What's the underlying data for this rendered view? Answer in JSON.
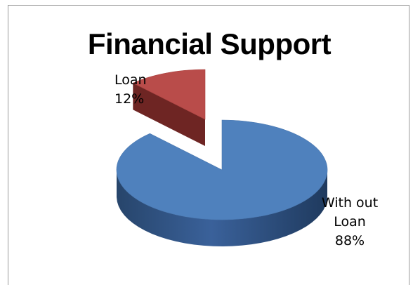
{
  "chart_data": {
    "type": "pie",
    "style": "3d-exploded",
    "title": "Financial Support",
    "slices": [
      {
        "label_line1": "Loan",
        "label_line2": "12%",
        "value": 12,
        "color": "#b94c4a",
        "exploded": true
      },
      {
        "label_line1": "With out",
        "label_line2": "Loan",
        "label_line3": "88%",
        "value": 88,
        "color": "#4f81bd",
        "exploded": false
      }
    ]
  }
}
